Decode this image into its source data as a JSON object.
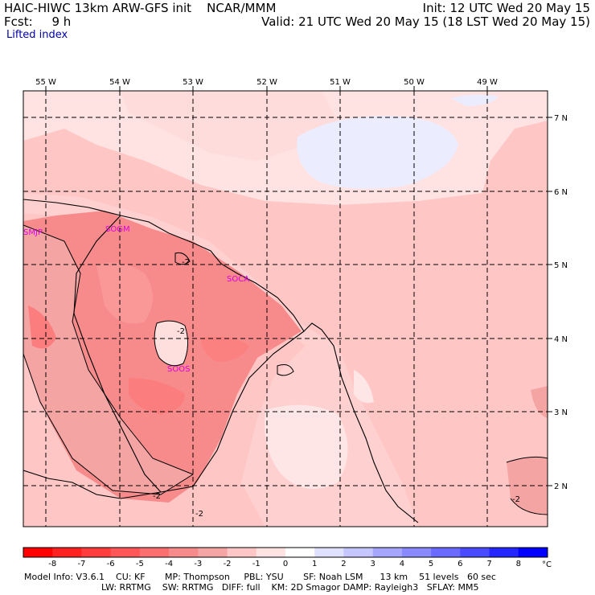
{
  "header": {
    "model_title": "HAIC-HIWC 13km ARW-GFS init",
    "org": "NCAR/MMM",
    "fcst_label": "Fcst:",
    "fcst_value": "9 h",
    "init": "Init: 12 UTC Wed 20 May 15",
    "valid": "Valid: 21 UTC Wed 20 May 15 (18 LST Wed 20 May 15)"
  },
  "field_name": "Lifted index",
  "map": {
    "lon_labels": [
      "55 W",
      "54 W",
      "53 W",
      "52 W",
      "51 W",
      "50 W",
      "49 W"
    ],
    "lat_labels": [
      "7 N",
      "6 N",
      "5 N",
      "4 N",
      "3 N",
      "2 N"
    ],
    "stations": [
      "SMJP",
      "SOGM",
      "SOCA",
      "SOOS"
    ],
    "contour_labels": [
      "-2",
      "-2",
      "-2",
      "-2",
      "-2"
    ]
  },
  "colorbar": {
    "labels": [
      "-8",
      "-7",
      "-6",
      "-5",
      "-4",
      "-3",
      "-2",
      "-1",
      "0",
      "1",
      "2",
      "3",
      "4",
      "5",
      "6",
      "7",
      "8"
    ],
    "unit": "°C",
    "colors": [
      "#ff0000",
      "#ff2020",
      "#ff3d3d",
      "#ff5757",
      "#fc6f6f",
      "#f78b8b",
      "#f5a4a4",
      "#ffc6c6",
      "#ffe2e2",
      "#ffffff",
      "#e0e0ff",
      "#c6c6ff",
      "#a6a6ff",
      "#8a8aff",
      "#6a6aff",
      "#4a4aff",
      "#2525ff",
      "#0000ff"
    ]
  },
  "footer": {
    "line1": "Model Info: V3.6.1    CU: KF       MP: Thompson     PBL: YSU       SF: Noah LSM      13 km    51 levels   60 sec",
    "line2": "LW: RRTMG    SW: RRTMG   DIFF: full    KM: 2D Smagor DAMP: Rayleigh3   SFLAY: MM5"
  }
}
